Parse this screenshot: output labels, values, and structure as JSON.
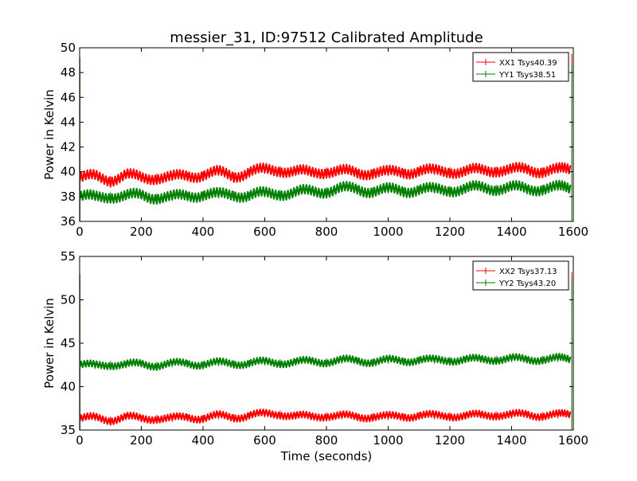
{
  "title": "messier_31, ID:97512 Calibrated Amplitude",
  "xlabel": "Time (seconds)",
  "chart_data": [
    {
      "type": "line",
      "ylabel": "Power in Kelvin",
      "xlim": [
        0,
        1600
      ],
      "ylim": [
        36,
        50
      ],
      "xticks": [
        0,
        200,
        400,
        600,
        800,
        1000,
        1200,
        1400,
        1600
      ],
      "yticks": [
        36,
        38,
        40,
        42,
        44,
        46,
        48,
        50
      ],
      "legend": "top-right",
      "series": [
        {
          "name": "XX1 Tsys40.39",
          "color": "#ff0000",
          "x": [
            0,
            50,
            100,
            150,
            200,
            250,
            300,
            350,
            400,
            450,
            500,
            550,
            600,
            650,
            700,
            750,
            800,
            850,
            900,
            950,
            1000,
            1050,
            1100,
            1150,
            1200,
            1250,
            1300,
            1350,
            1400,
            1450,
            1500,
            1550,
            1595
          ],
          "y": [
            39.5,
            39.6,
            39.4,
            39.7,
            39.5,
            39.6,
            39.5,
            39.7,
            39.8,
            39.9,
            39.7,
            40.0,
            40.1,
            40.2,
            40.0,
            39.9,
            40.1,
            40.0,
            39.9,
            40.0,
            39.9,
            40.0,
            40.1,
            40.0,
            40.1,
            40.0,
            40.1,
            40.2,
            40.1,
            40.2,
            40.1,
            40.1,
            40.2
          ]
        },
        {
          "name": "YY1 Tsys38.51",
          "color": "#008000",
          "x": [
            0,
            50,
            100,
            150,
            200,
            250,
            300,
            350,
            400,
            450,
            500,
            550,
            600,
            650,
            700,
            750,
            800,
            850,
            900,
            950,
            1000,
            1050,
            1100,
            1150,
            1200,
            1250,
            1300,
            1350,
            1400,
            1450,
            1500,
            1550,
            1595
          ],
          "y": [
            38.0,
            37.9,
            38.1,
            38.0,
            38.1,
            38.0,
            37.9,
            38.1,
            38.2,
            38.1,
            38.2,
            38.1,
            38.2,
            38.3,
            38.3,
            38.4,
            38.5,
            38.6,
            38.6,
            38.5,
            38.5,
            38.5,
            38.6,
            38.5,
            38.6,
            38.6,
            38.7,
            38.7,
            38.7,
            38.6,
            38.7,
            38.7,
            38.6
          ]
        }
      ]
    },
    {
      "type": "line",
      "ylabel": "Power in Kelvin",
      "xlim": [
        0,
        1600
      ],
      "ylim": [
        35,
        55
      ],
      "xticks": [
        0,
        200,
        400,
        600,
        800,
        1000,
        1200,
        1400,
        1600
      ],
      "yticks": [
        35,
        40,
        45,
        50,
        55
      ],
      "legend": "top-right",
      "series": [
        {
          "name": "XX2 Tsys37.13",
          "color": "#ff0000",
          "x": [
            0,
            50,
            100,
            150,
            200,
            250,
            300,
            350,
            400,
            450,
            500,
            550,
            600,
            650,
            700,
            750,
            800,
            850,
            900,
            950,
            1000,
            1050,
            1100,
            1150,
            1200,
            1250,
            1300,
            1350,
            1400,
            1450,
            1500,
            1550,
            1595
          ],
          "y": [
            36.3,
            36.4,
            36.2,
            36.5,
            36.3,
            36.4,
            36.3,
            36.5,
            36.4,
            36.6,
            36.5,
            36.7,
            36.8,
            36.9,
            36.6,
            36.5,
            36.7,
            36.6,
            36.5,
            36.6,
            36.5,
            36.6,
            36.7,
            36.6,
            36.7,
            36.6,
            36.7,
            36.8,
            36.7,
            36.8,
            36.7,
            36.7,
            36.8
          ]
        },
        {
          "name": "YY2 Tsys43.20",
          "color": "#008000",
          "x": [
            0,
            50,
            100,
            150,
            200,
            250,
            300,
            350,
            400,
            450,
            500,
            550,
            600,
            650,
            700,
            750,
            800,
            850,
            900,
            950,
            1000,
            1050,
            1100,
            1150,
            1200,
            1250,
            1300,
            1350,
            1400,
            1450,
            1500,
            1550,
            1595
          ],
          "y": [
            42.5,
            42.4,
            42.6,
            42.5,
            42.6,
            42.5,
            42.6,
            42.7,
            42.6,
            42.7,
            42.7,
            42.7,
            42.8,
            42.8,
            42.8,
            42.9,
            42.9,
            43.0,
            43.0,
            42.9,
            43.0,
            43.0,
            43.1,
            43.0,
            43.1,
            43.1,
            43.1,
            43.2,
            43.2,
            43.1,
            43.2,
            43.2,
            43.1
          ]
        }
      ]
    }
  ]
}
